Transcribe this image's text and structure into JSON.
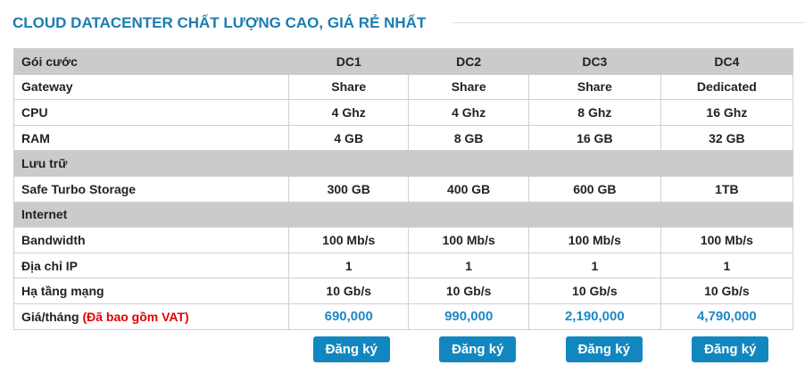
{
  "title": "CLOUD DATACENTER CHẤT LƯỢNG CAO, GIÁ RẺ NHẤT",
  "header": [
    "Gói cước",
    "DC1",
    "DC2",
    "DC3",
    "DC4"
  ],
  "rows": [
    {
      "type": "data",
      "cells": [
        "Gateway",
        "Share",
        "Share",
        "Share",
        "Dedicated"
      ]
    },
    {
      "type": "data",
      "cells": [
        "CPU",
        "4 Ghz",
        "4 Ghz",
        "8 Ghz",
        "16 Ghz"
      ]
    },
    {
      "type": "data",
      "cells": [
        "RAM",
        "4 GB",
        "8 GB",
        "16 GB",
        "32 GB"
      ]
    },
    {
      "type": "section",
      "cells": [
        "Lưu trữ"
      ]
    },
    {
      "type": "data",
      "cells": [
        "Safe Turbo Storage",
        "300 GB",
        "400 GB",
        "600 GB",
        "1TB"
      ]
    },
    {
      "type": "section",
      "cells": [
        "Internet"
      ]
    },
    {
      "type": "data",
      "cells": [
        "Bandwidth",
        "100 Mb/s",
        "100 Mb/s",
        "100 Mb/s",
        "100 Mb/s"
      ]
    },
    {
      "type": "data",
      "cells": [
        "Địa chỉ IP",
        "1",
        "1",
        "1",
        "1"
      ]
    },
    {
      "type": "data",
      "cells": [
        "Hạ tầng mạng",
        "10 Gb/s",
        "10 Gb/s",
        "10 Gb/s",
        "10 Gb/s"
      ]
    }
  ],
  "price": {
    "label": "Giá/tháng",
    "note": "(Đã bao gồm VAT)",
    "values": [
      "690,000",
      "990,000",
      "2,190,000",
      "4,790,000"
    ]
  },
  "button_label": "Đăng ký",
  "colors": {
    "accent": "#1287bf",
    "price": "#1e88c7",
    "note": "#e00000",
    "header_bg": "#cbcbcb"
  }
}
